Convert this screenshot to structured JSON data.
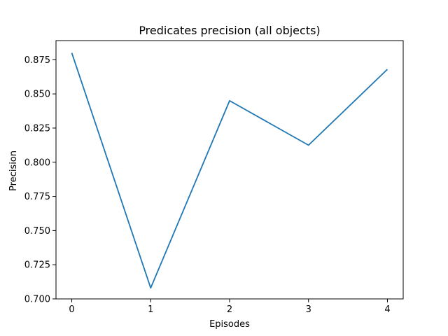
{
  "chart_data": {
    "type": "line",
    "title": "Predicates precision (all objects)",
    "xlabel": "Episodes",
    "ylabel": "Precision",
    "x": [
      0,
      1,
      2,
      3,
      4
    ],
    "series": [
      {
        "values": [
          0.88,
          0.708,
          0.845,
          0.8125,
          0.868
        ],
        "color": "#1f77b4"
      }
    ],
    "xlim": [
      -0.2,
      4.2
    ],
    "ylim": [
      0.7,
      0.889
    ],
    "xticks": [
      0,
      1,
      2,
      3,
      4
    ],
    "xtick_labels": [
      "0",
      "1",
      "2",
      "3",
      "4"
    ],
    "yticks": [
      0.7,
      0.725,
      0.75,
      0.775,
      0.8,
      0.825,
      0.85,
      0.875
    ],
    "ytick_labels": [
      "0.700",
      "0.725",
      "0.750",
      "0.775",
      "0.800",
      "0.825",
      "0.850",
      "0.875"
    ],
    "grid": false,
    "legend": "none"
  }
}
